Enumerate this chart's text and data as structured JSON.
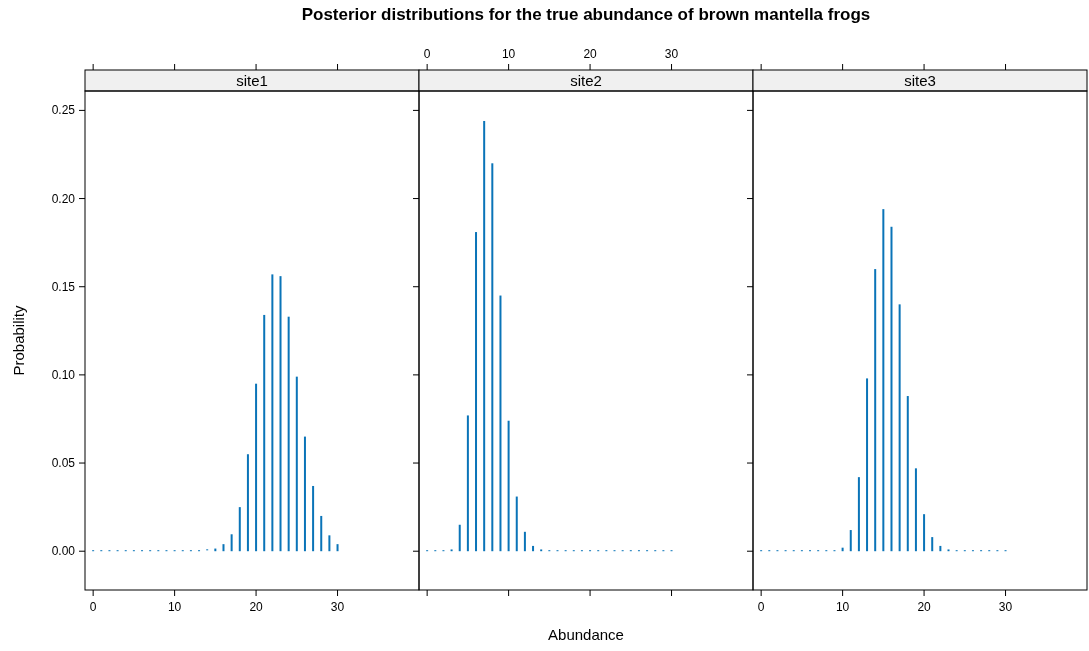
{
  "chart_data": [
    {
      "type": "other",
      "title": "Posterior distributions for the true abundance of brown mantella frogs",
      "xlabel": "Abundance",
      "ylabel": "Probability"
    },
    {
      "type": "bar",
      "title": "site1",
      "x": [
        0,
        1,
        2,
        3,
        4,
        5,
        6,
        7,
        8,
        9,
        10,
        11,
        12,
        13,
        14,
        15,
        16,
        17,
        18,
        19,
        20,
        21,
        22,
        23,
        24,
        25,
        26,
        27,
        28,
        29,
        30
      ],
      "series": [
        {
          "color": "#0a74b8",
          "values": [
            0,
            0,
            0,
            0,
            0,
            0,
            0,
            0,
            0,
            0,
            0,
            0,
            0,
            0,
            0.0005,
            0.0015,
            0.004,
            0.0096,
            0.025,
            0.055,
            0.095,
            0.134,
            0.157,
            0.156,
            0.133,
            0.099,
            0.065,
            0.037,
            0.02,
            0.009,
            0.004
          ]
        }
      ],
      "xlim": [
        -1,
        40
      ],
      "xticks": [
        0,
        10,
        20,
        30
      ],
      "ylim": [
        -0.022,
        0.261
      ],
      "yticks": [
        {
          "value": 0,
          "label": "0.00"
        },
        0.05,
        {
          "value": 0.1,
          "label": "0.10"
        },
        0.15,
        {
          "value": 0.2,
          "label": "0.20"
        },
        0.25
      ]
    },
    {
      "type": "bar",
      "title": "site2",
      "x": [
        0,
        1,
        2,
        3,
        4,
        5,
        6,
        7,
        8,
        9,
        10,
        11,
        12,
        13,
        14,
        15,
        16,
        17,
        18,
        19,
        20,
        21,
        22,
        23,
        24,
        25,
        26,
        27,
        28,
        29,
        30
      ],
      "series": [
        {
          "color": "#0a74b8",
          "values": [
            0,
            0,
            0,
            0.001,
            0.015,
            0.077,
            0.181,
            0.244,
            0.22,
            0.145,
            0.074,
            0.031,
            0.011,
            0.003,
            0.001,
            0,
            0,
            0,
            0,
            0,
            0,
            0,
            0,
            0,
            0,
            0,
            0,
            0,
            0,
            0,
            0
          ]
        }
      ],
      "xlim": [
        -1,
        40
      ],
      "xticks": [
        0,
        10,
        20,
        30
      ],
      "ylim": [
        -0.022,
        0.261
      ],
      "yticks": [
        0,
        0.05,
        0.1,
        0.15,
        0.2,
        0.25
      ],
      "tick_labels": "x"
    },
    {
      "type": "bar",
      "title": "site3",
      "x": [
        0,
        1,
        2,
        3,
        4,
        5,
        6,
        7,
        8,
        9,
        10,
        11,
        12,
        13,
        14,
        15,
        16,
        17,
        18,
        19,
        20,
        21,
        22,
        23,
        24,
        25,
        26,
        27,
        28,
        29,
        30
      ],
      "series": [
        {
          "color": "#0a74b8",
          "values": [
            0,
            0,
            0,
            0,
            0,
            0,
            0,
            0,
            0,
            0,
            0.002,
            0.012,
            0.042,
            0.098,
            0.16,
            0.194,
            0.184,
            0.14,
            0.088,
            0.047,
            0.021,
            0.008,
            0.003,
            0.001,
            0,
            0,
            0,
            0,
            0,
            0,
            0
          ]
        }
      ],
      "xlim": [
        -1,
        40
      ],
      "xticks": [
        0,
        10,
        20,
        30
      ],
      "ylim": [
        -0.022,
        0.261
      ],
      "yticks": [
        0,
        0.05,
        0.1,
        0.15,
        0.2,
        0.25
      ],
      "tick_labels": "x"
    }
  ]
}
